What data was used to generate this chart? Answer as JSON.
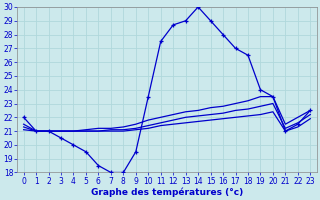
{
  "xlabel": "Graphe des températures (°c)",
  "xlim": [
    -0.5,
    23.5
  ],
  "ylim": [
    18,
    30
  ],
  "yticks": [
    18,
    19,
    20,
    21,
    22,
    23,
    24,
    25,
    26,
    27,
    28,
    29,
    30
  ],
  "xticks": [
    0,
    1,
    2,
    3,
    4,
    5,
    6,
    7,
    8,
    9,
    10,
    11,
    12,
    13,
    14,
    15,
    16,
    17,
    18,
    19,
    20,
    21,
    22,
    23
  ],
  "background_color": "#cce9ec",
  "grid_color": "#b0d8dc",
  "line_color": "#0000cc",
  "lines": [
    {
      "x": [
        0,
        1,
        2,
        3,
        4,
        5,
        6,
        7,
        8,
        9,
        10,
        11,
        12,
        13,
        14,
        15,
        16,
        17,
        18,
        19,
        20,
        21,
        22,
        23
      ],
      "y": [
        22.0,
        21.0,
        21.0,
        20.5,
        20.0,
        19.5,
        18.5,
        18.0,
        18.0,
        19.5,
        23.5,
        27.5,
        28.7,
        29.0,
        30.0,
        29.0,
        28.0,
        27.0,
        26.5,
        24.0,
        23.5,
        21.0,
        21.5,
        22.5
      ],
      "marker": "+"
    },
    {
      "x": [
        0,
        1,
        2,
        3,
        4,
        5,
        6,
        7,
        8,
        9,
        10,
        11,
        12,
        13,
        14,
        15,
        16,
        17,
        18,
        19,
        20,
        21,
        22,
        23
      ],
      "y": [
        21.5,
        21.0,
        21.0,
        21.0,
        21.0,
        21.1,
        21.2,
        21.2,
        21.3,
        21.5,
        21.8,
        22.0,
        22.2,
        22.4,
        22.5,
        22.7,
        22.8,
        23.0,
        23.2,
        23.5,
        23.5,
        21.5,
        22.0,
        22.5
      ],
      "marker": null
    },
    {
      "x": [
        0,
        1,
        2,
        3,
        4,
        5,
        6,
        7,
        8,
        9,
        10,
        11,
        12,
        13,
        14,
        15,
        16,
        17,
        18,
        19,
        20,
        21,
        22,
        23
      ],
      "y": [
        21.3,
        21.0,
        21.0,
        21.0,
        21.0,
        21.0,
        21.0,
        21.1,
        21.1,
        21.2,
        21.4,
        21.6,
        21.8,
        22.0,
        22.1,
        22.2,
        22.3,
        22.5,
        22.6,
        22.8,
        23.0,
        21.2,
        21.6,
        22.2
      ],
      "marker": null
    },
    {
      "x": [
        0,
        1,
        2,
        3,
        4,
        5,
        6,
        7,
        8,
        9,
        10,
        11,
        12,
        13,
        14,
        15,
        16,
        17,
        18,
        19,
        20,
        21,
        22,
        23
      ],
      "y": [
        21.1,
        21.0,
        21.0,
        21.0,
        21.0,
        21.0,
        21.0,
        21.0,
        21.0,
        21.1,
        21.2,
        21.4,
        21.5,
        21.6,
        21.7,
        21.8,
        21.9,
        22.0,
        22.1,
        22.2,
        22.4,
        21.0,
        21.3,
        21.9
      ],
      "marker": null
    }
  ],
  "tick_fontsize": 5.5,
  "label_fontsize": 6.5,
  "label_color": "#0000cc",
  "tick_color": "#0000cc"
}
